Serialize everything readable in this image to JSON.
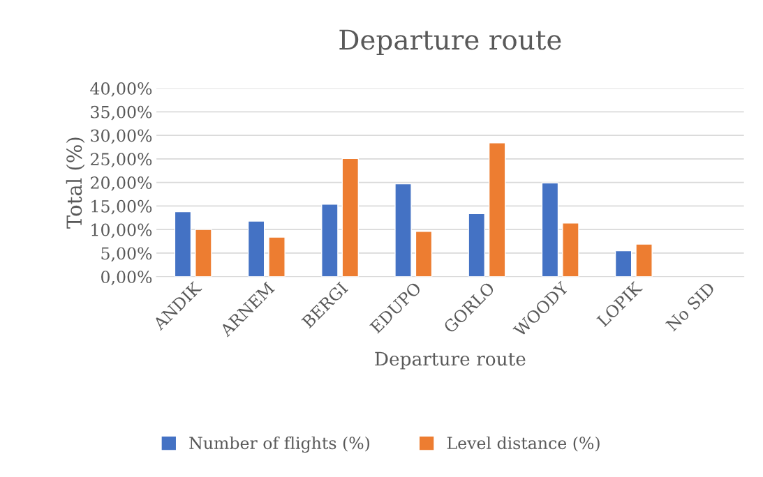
{
  "chart_data": {
    "type": "bar",
    "title": "Departure route",
    "xlabel": "Departure route",
    "ylabel": "Total (%)",
    "categories": [
      "ANDIK",
      "ARNEM",
      "BERGI",
      "EDUPO",
      "GORLO",
      "WOODY",
      "LOPIK",
      "No SID"
    ],
    "series": [
      {
        "name": "Number of flights (%)",
        "color": "#4472c4",
        "values": [
          13.8,
          11.8,
          15.4,
          19.7,
          13.4,
          19.9,
          5.5,
          null
        ]
      },
      {
        "name": "Level distance (%)",
        "color": "#ed7d31",
        "values": [
          10.0,
          8.4,
          25.1,
          9.6,
          28.4,
          11.4,
          6.9,
          null
        ]
      }
    ],
    "ylim": [
      0,
      40
    ],
    "yticks": [
      {
        "value": 0,
        "label": "0,00%"
      },
      {
        "value": 5,
        "label": "5,00%"
      },
      {
        "value": 10,
        "label": "10,00%"
      },
      {
        "value": 15,
        "label": "15,00%"
      },
      {
        "value": 20,
        "label": "20,00%"
      },
      {
        "value": 25,
        "label": "25,00%"
      },
      {
        "value": 30,
        "label": "30,00%"
      },
      {
        "value": 35,
        "label": "35,00%"
      },
      {
        "value": 40,
        "label": "40,00%"
      }
    ],
    "grid": "y",
    "legend": "bottom"
  }
}
